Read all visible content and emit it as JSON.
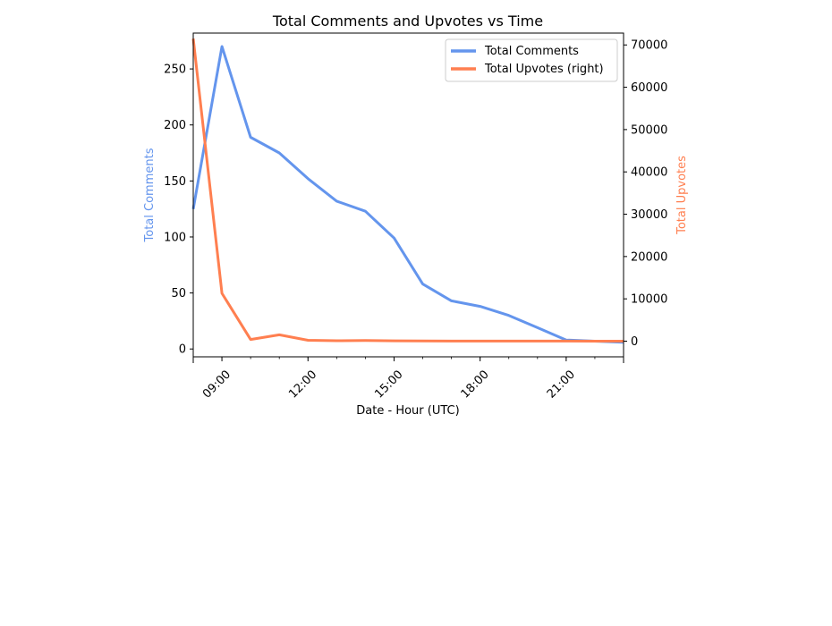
{
  "chart_data": {
    "type": "line",
    "title": "Total Comments and Upvotes vs Time",
    "xlabel": "Date - Hour (UTC)",
    "ylabel_left": "Total Comments",
    "ylabel_right": "Total Upvotes",
    "x_hours": [
      8,
      9,
      10,
      11,
      12,
      13,
      14,
      15,
      16,
      17,
      18,
      19,
      20,
      21,
      22,
      23
    ],
    "xlim": [
      8,
      23
    ],
    "xticks": [
      {
        "hour": 9,
        "label": "09:00"
      },
      {
        "hour": 12,
        "label": "12:00"
      },
      {
        "hour": 15,
        "label": "15:00"
      },
      {
        "hour": 18,
        "label": "18:00"
      },
      {
        "hour": 21,
        "label": "21:00"
      }
    ],
    "ylim_left": [
      -7,
      282
    ],
    "yticks_left": [
      0,
      50,
      100,
      150,
      200,
      250
    ],
    "ylim_right": [
      -3700,
      72800
    ],
    "yticks_right": [
      0,
      10000,
      20000,
      30000,
      40000,
      50000,
      60000,
      70000
    ],
    "legend_position": "top-right",
    "series": [
      {
        "name": "Total Comments",
        "axis": "left",
        "color": "#6495ED",
        "values": [
          125,
          270,
          189,
          175,
          152,
          132,
          123,
          99,
          58,
          43,
          38,
          30,
          19,
          8,
          7,
          6
        ]
      },
      {
        "name": "Total Upvotes (right)",
        "axis": "right",
        "color": "#FF7F50",
        "values": [
          71500,
          11300,
          400,
          1500,
          200,
          100,
          150,
          80,
          50,
          20,
          20,
          15,
          10,
          10,
          5,
          5
        ]
      }
    ]
  }
}
